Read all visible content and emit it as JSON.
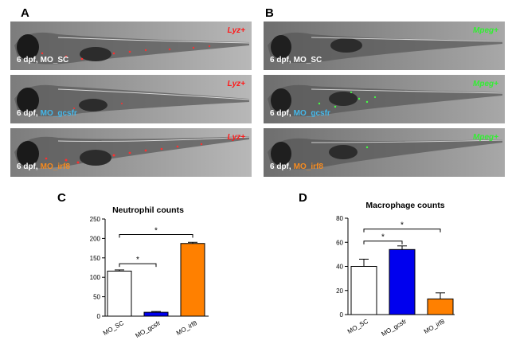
{
  "figure": {
    "panel_labels": [
      "A",
      "B",
      "C",
      "D"
    ],
    "panel_a": {
      "images": [
        {
          "stage": "6 dpf,",
          "morpholino": "MO_SC",
          "marker": "Lyz+",
          "morpholino_color": "#ffffff"
        },
        {
          "stage": "6 dpf,",
          "morpholino": "MO_gcsfr",
          "marker": "Lyz+",
          "morpholino_color": "#45b8ea"
        },
        {
          "stage": "6 dpf,",
          "morpholino": "MO_irf8",
          "marker": "Lyz+",
          "morpholino_color": "#f68b1f"
        }
      ],
      "marker_color": "#ff1a1a"
    },
    "panel_b": {
      "images": [
        {
          "stage": "6 dpf,",
          "morpholino": "MO_SC",
          "marker": "Mpeg+",
          "morpholino_color": "#ffffff"
        },
        {
          "stage": "6 dpf,",
          "morpholino": "MO_gcsfr",
          "marker": "Mpeg+",
          "morpholino_color": "#45b8ea"
        },
        {
          "stage": "6 dpf,",
          "morpholino": "MO_irf8",
          "marker": "Mpeg+",
          "morpholino_color": "#f68b1f"
        }
      ],
      "marker_color": "#33ee33"
    }
  },
  "chart_data": [
    {
      "type": "bar",
      "title": "Neutrophil counts",
      "categories": [
        "MO_SC",
        "MO_gcsfr",
        "MO_irf8"
      ],
      "values": [
        116,
        10,
        187
      ],
      "errors": [
        3,
        2,
        3
      ],
      "colors": [
        "#ffffff",
        "#0000ee",
        "#ff8000"
      ],
      "ylim": [
        0,
        250
      ],
      "yticks": [
        "0",
        "50",
        "100",
        "150",
        "200",
        "250"
      ],
      "significance": [
        {
          "from": "MO_SC",
          "to": "MO_gcsfr",
          "label": "*",
          "y": 135
        },
        {
          "from": "MO_SC",
          "to": "MO_irf8",
          "label": "*",
          "y": 210
        }
      ]
    },
    {
      "type": "bar",
      "title": "Macrophage counts",
      "categories": [
        "MO_SC",
        "MO_gcsfr",
        "MO_irf8"
      ],
      "values": [
        40,
        54,
        13
      ],
      "errors": [
        6,
        3,
        5
      ],
      "colors": [
        "#ffffff",
        "#0000ee",
        "#ff8000"
      ],
      "ylim": [
        0,
        80
      ],
      "yticks": [
        "0",
        "20",
        "40",
        "60",
        "80"
      ],
      "significance": [
        {
          "from": "MO_SC",
          "to": "MO_gcsfr",
          "label": "*",
          "y": 61
        },
        {
          "from": "MO_SC",
          "to": "MO_irf8",
          "label": "*",
          "y": 71
        }
      ]
    }
  ]
}
